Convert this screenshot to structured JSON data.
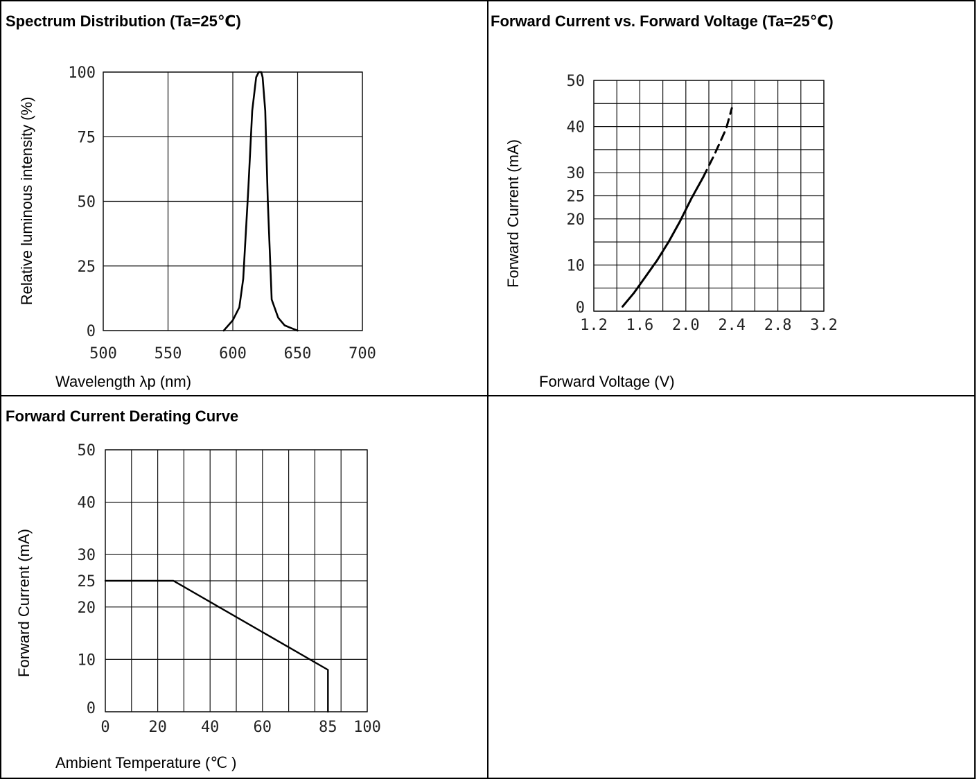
{
  "chart_data": [
    {
      "type": "line",
      "title": "Spectrum Distribution (Ta=25℃)",
      "xlabel": "Wavelength λp (nm)",
      "ylabel": "Relative luminous intensity (%)",
      "xlim": [
        500,
        700
      ],
      "ylim": [
        0,
        100
      ],
      "x_ticks": [
        500,
        550,
        600,
        650,
        700
      ],
      "y_ticks": [
        0,
        25,
        50,
        75,
        100
      ],
      "grid": true,
      "series": [
        {
          "x": [
            593,
            600,
            605,
            608,
            612,
            615,
            618,
            620,
            621,
            622,
            623,
            625,
            627,
            630,
            635,
            640,
            645,
            650
          ],
          "y": [
            0,
            4,
            9,
            20,
            55,
            85,
            98,
            100,
            100,
            100,
            98,
            85,
            50,
            12,
            5,
            2,
            1,
            0
          ]
        }
      ]
    },
    {
      "type": "line",
      "title": "Forward Current vs. Forward Voltage (Ta=25℃)",
      "xlabel": "Forward Voltage (V)",
      "ylabel": "Forward Current (mA)",
      "xlim": [
        1.2,
        3.2
      ],
      "ylim": [
        0,
        50
      ],
      "x_ticks": [
        1.2,
        1.6,
        2.0,
        2.4,
        2.8,
        3.2
      ],
      "y_ticks": [
        0,
        10,
        20,
        25,
        30,
        40,
        50
      ],
      "grid": true,
      "series": [
        {
          "style": "solid",
          "x": [
            1.45,
            1.55,
            1.65,
            1.75,
            1.85,
            1.95,
            2.05,
            2.15
          ],
          "y": [
            1,
            4,
            7.5,
            11,
            15,
            19.5,
            24.5,
            29
          ]
        },
        {
          "style": "dashed",
          "x": [
            2.15,
            2.25,
            2.35,
            2.4
          ],
          "y": [
            29,
            34,
            39.5,
            44
          ]
        }
      ]
    },
    {
      "type": "line",
      "title": "Forward Current Derating Curve",
      "xlabel": "Ambient Temperature (℃ )",
      "ylabel": "Forward Current (mA)",
      "xlim": [
        0,
        100
      ],
      "ylim": [
        0,
        50
      ],
      "x_ticks": [
        0,
        20,
        40,
        60,
        85,
        100
      ],
      "y_ticks": [
        0,
        10,
        20,
        25,
        30,
        40,
        50
      ],
      "grid": true,
      "series": [
        {
          "x": [
            0,
            26,
            85,
            85
          ],
          "y": [
            25,
            25,
            8,
            0
          ]
        }
      ]
    }
  ]
}
